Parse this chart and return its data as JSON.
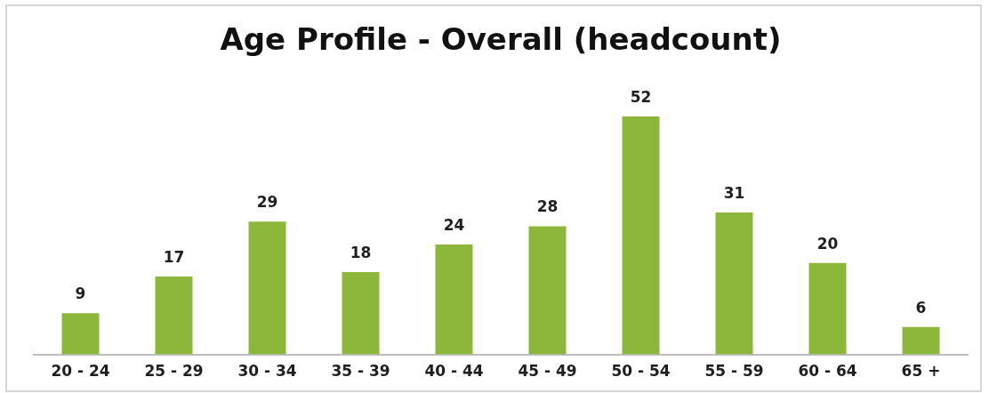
{
  "chart_data": {
    "type": "bar",
    "title": "Age Profile - Overall (headcount)",
    "categories": [
      "20 - 24",
      "25 - 29",
      "30 - 34",
      "35 - 39",
      "40 - 44",
      "45 - 49",
      "50 - 54",
      "55 - 59",
      "60 - 64",
      "65 +"
    ],
    "values": [
      9,
      17,
      29,
      18,
      24,
      28,
      52,
      31,
      20,
      6
    ],
    "color": "#8db73b",
    "data_labels": true,
    "tick_labels": "x"
  }
}
